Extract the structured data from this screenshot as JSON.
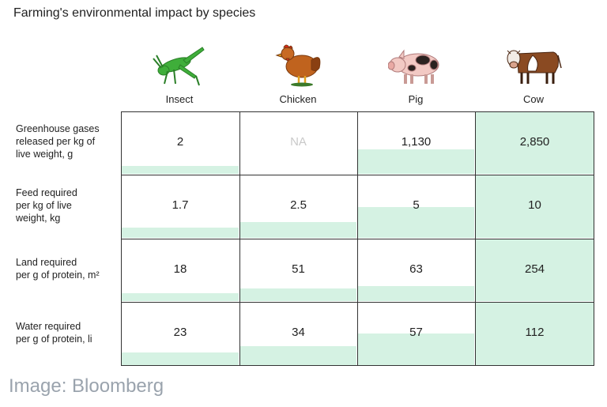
{
  "title": "Farming's environmental impact by species",
  "credit": "Image: Bloomberg",
  "fill_color": "#d5f2e3",
  "chart_data": {
    "type": "table",
    "title": "Farming's environmental impact by species",
    "columns": [
      "Insect",
      "Chicken",
      "Pig",
      "Cow"
    ],
    "column_icons": [
      "grasshopper-icon",
      "chicken-icon",
      "pig-icon",
      "cow-icon"
    ],
    "rows": [
      {
        "label": "Greenhouse gases released per kg of live weight, g",
        "label_lines": [
          "Greenhouse gases",
          "released per kg of",
          "live weight, g"
        ],
        "display": [
          "2",
          "NA",
          "1,130",
          "2,850"
        ],
        "values": [
          2,
          null,
          1130,
          2850
        ]
      },
      {
        "label": "Feed required per kg of live weight, kg",
        "label_lines": [
          "Feed required",
          "per kg of live",
          "weight, kg"
        ],
        "display": [
          "1.7",
          "2.5",
          "5",
          "10"
        ],
        "values": [
          1.7,
          2.5,
          5,
          10
        ]
      },
      {
        "label": "Land required per g of protein, m²",
        "label_lines": [
          "Land required",
          "per g of protein, m²"
        ],
        "display": [
          "18",
          "51",
          "63",
          "254"
        ],
        "values": [
          18,
          51,
          63,
          254
        ]
      },
      {
        "label": "Water required per g of protein, li",
        "label_lines": [
          "Water required",
          "per g of protein, li"
        ],
        "display": [
          "23",
          "34",
          "57",
          "112"
        ],
        "values": [
          23,
          34,
          57,
          112
        ]
      }
    ]
  }
}
